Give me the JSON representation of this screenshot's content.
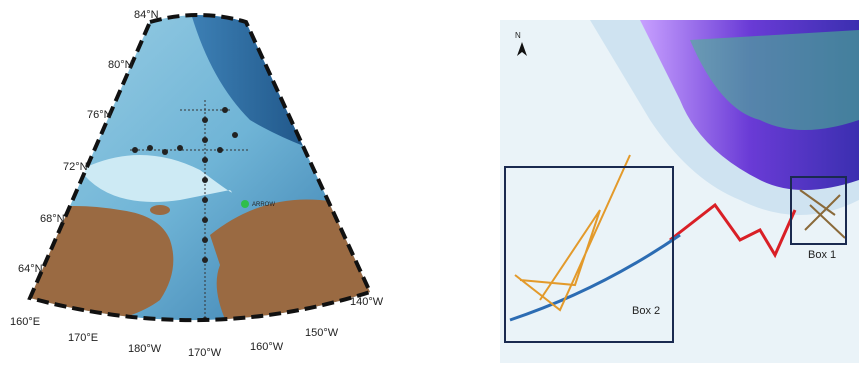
{
  "left_map": {
    "lat_labels": [
      "84°N",
      "80°N",
      "76°N",
      "72°N",
      "68°N",
      "64°N"
    ],
    "lon_labels": [
      "160°E",
      "170°E",
      "180°W",
      "170°W",
      "160°W",
      "150°W",
      "140°W"
    ],
    "station_label": "ARROW"
  },
  "right_map": {
    "north_label": "N",
    "box_labels": [
      "Box 1",
      "Box 2"
    ]
  }
}
